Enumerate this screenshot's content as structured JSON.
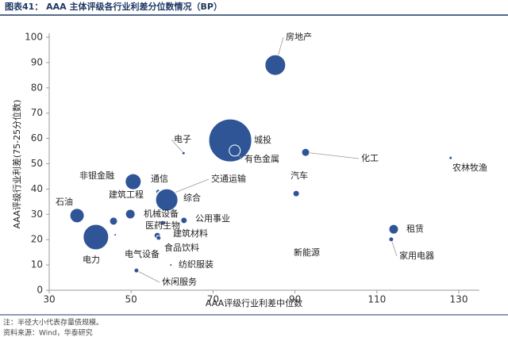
{
  "chart_data": {
    "type": "scatter",
    "title": "图表41：  AAA 主体评级各行业利差分位数情况（BP）",
    "x_label": "AAA评级行业利差中位数",
    "y_label": "AAA评级行业利差(75-25分位数)",
    "notes": [
      "注：半径大小代表存量债规模。",
      "资料来源：Wind，华泰研究"
    ],
    "color": "#2f5597",
    "xlim": [
      30,
      135
    ],
    "xticks": [
      30,
      50,
      70,
      90,
      110,
      130
    ],
    "ylim": [
      0,
      100
    ],
    "yticks": [
      0,
      10,
      20,
      30,
      40,
      50,
      60,
      70,
      80,
      90,
      100
    ],
    "points": [
      {
        "label": "房地产",
        "x": 85.2,
        "y": 89.0,
        "size": 13
      },
      {
        "label": "城投",
        "x": 74.2,
        "y": 59.2,
        "size": 27
      },
      {
        "label": "有色金属",
        "x": 75.3,
        "y": 55.2,
        "size": 7
      },
      {
        "label": "电子",
        "x": 62.8,
        "y": 54.2,
        "size": 2
      },
      {
        "label": "化工",
        "x": 92.6,
        "y": 54.5,
        "size": 5
      },
      {
        "label": "农林牧渔",
        "x": 128.0,
        "y": 52.3,
        "size": 2
      },
      {
        "label": "非银金融",
        "x": 50.5,
        "y": 42.9,
        "size": 10
      },
      {
        "label": "通信",
        "x": 56.6,
        "y": 38.9,
        "size": 3
      },
      {
        "label": "交通运输",
        "x": 57.7,
        "y": 36.7,
        "size": 9
      },
      {
        "label": "综合",
        "x": 58.7,
        "y": 35.7,
        "size": 14
      },
      {
        "label": "汽车",
        "x": 90.3,
        "y": 38.2,
        "size": 4
      },
      {
        "label": "石油",
        "x": 36.8,
        "y": 29.5,
        "size": 9
      },
      {
        "label": "建筑工程",
        "x": 45.7,
        "y": 27.3,
        "size": 5
      },
      {
        "label": "机械设备",
        "x": 49.8,
        "y": 30.1,
        "size": 6
      },
      {
        "label": "公用事业",
        "x": 62.9,
        "y": 27.6,
        "size": 4
      },
      {
        "label": "医药生物",
        "x": 57.7,
        "y": 26.6,
        "size": 3
      },
      {
        "label": "租赁",
        "x": 114.1,
        "y": 24.1,
        "size": 6
      },
      {
        "label": "建筑材料",
        "x": 56.4,
        "y": 21.6,
        "size": 4
      },
      {
        "label": "家用电器",
        "x": 113.5,
        "y": 20.1,
        "size": 3
      },
      {
        "label": "电力",
        "x": 41.4,
        "y": 21.0,
        "size": 16
      },
      {
        "label": "电气设备",
        "x": 46.1,
        "y": 21.9,
        "size": 1
      },
      {
        "label": "食品饮料",
        "x": 56.7,
        "y": 20.7,
        "size": 3
      },
      {
        "label": "新能源",
        "x": 90.5,
        "y": 15.0,
        "size": 1
      },
      {
        "label": "纺织服装",
        "x": 59.7,
        "y": 10.0,
        "size": 1
      },
      {
        "label": "休闲服务",
        "x": 51.3,
        "y": 7.8,
        "size": 3
      }
    ]
  }
}
